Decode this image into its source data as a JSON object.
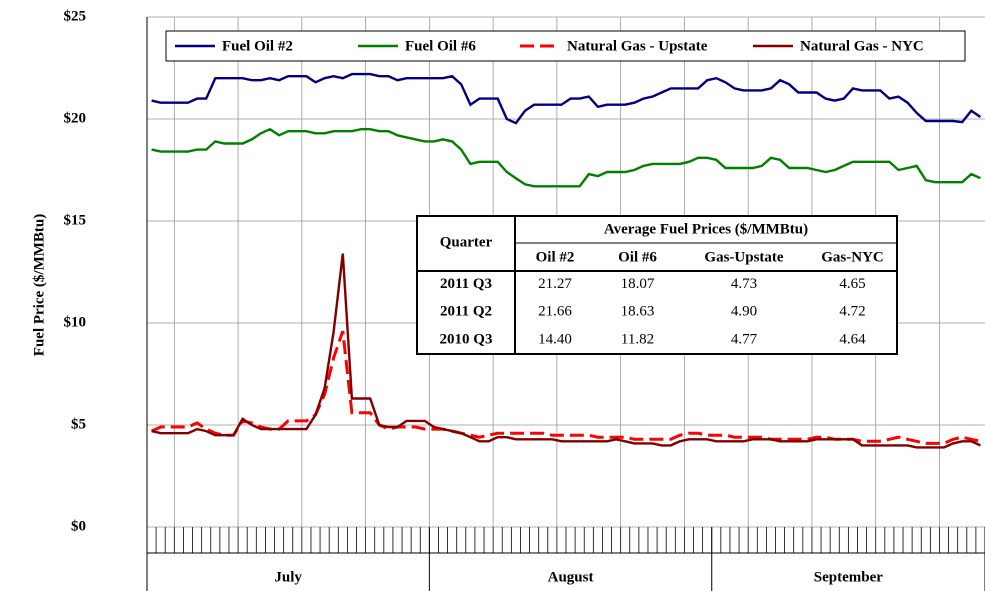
{
  "chart_data": {
    "type": "line",
    "ylabel": "Fuel Price ($/MMBtu)",
    "categories": [
      null,
      null,
      null,
      null,
      null,
      null,
      null,
      null,
      null,
      null,
      null,
      null,
      null,
      null,
      null,
      null,
      null,
      null,
      null,
      null,
      null,
      null,
      null,
      null,
      null,
      null,
      null,
      null,
      null,
      null,
      null,
      null,
      null,
      null,
      null,
      null,
      null,
      null,
      null,
      null,
      null,
      null,
      null,
      null,
      null,
      null,
      null,
      null,
      null,
      null,
      null,
      null,
      null,
      null,
      null,
      null,
      null,
      null,
      null,
      null,
      null,
      null,
      null,
      null,
      null,
      null,
      null,
      null,
      null,
      null,
      null,
      null,
      null,
      null,
      null,
      null,
      null,
      null,
      null,
      null,
      null,
      null,
      null,
      null,
      null,
      null,
      null,
      null,
      null,
      null,
      null,
      null
    ],
    "x_groups": [
      {
        "label": "July",
        "count": 31
      },
      {
        "label": "August",
        "count": 31
      },
      {
        "label": "September",
        "count": 30
      }
    ],
    "ylim": [
      0,
      25
    ],
    "yticks": [
      {
        "value": 0,
        "label": "$0"
      },
      {
        "value": 5,
        "label": "$5"
      },
      {
        "value": 10,
        "label": "$10"
      },
      {
        "value": 15,
        "label": "$15"
      },
      {
        "value": 20,
        "label": "$20"
      },
      {
        "value": 25,
        "label": "$25"
      }
    ],
    "grid": true,
    "legend": "top",
    "series": [
      {
        "name": "Fuel Oil #2",
        "color": "#000080",
        "dash": false,
        "values": [
          20.9,
          20.8,
          20.8,
          20.8,
          20.8,
          21.0,
          21.0,
          22.0,
          22.0,
          22.0,
          22.0,
          21.9,
          21.9,
          22.0,
          21.9,
          22.1,
          22.1,
          22.1,
          21.8,
          22.0,
          22.1,
          22.0,
          22.2,
          22.2,
          22.2,
          22.1,
          22.1,
          21.9,
          22.0,
          22.0,
          22.0,
          22.0,
          22.0,
          22.1,
          21.7,
          20.7,
          21.0,
          21.0,
          21.0,
          20.0,
          19.8,
          20.4,
          20.7,
          20.7,
          20.7,
          20.7,
          21.0,
          21.0,
          21.1,
          20.6,
          20.7,
          20.7,
          20.7,
          20.8,
          21.0,
          21.1,
          21.3,
          21.5,
          21.5,
          21.5,
          21.5,
          21.9,
          22.0,
          21.8,
          21.5,
          21.4,
          21.4,
          21.4,
          21.5,
          21.9,
          21.7,
          21.3,
          21.3,
          21.3,
          21.0,
          20.9,
          21.0,
          21.5,
          21.4,
          21.4,
          21.4,
          21.0,
          21.1,
          20.8,
          20.3,
          19.9,
          19.9,
          19.9,
          19.9,
          19.85,
          20.4,
          20.1
        ]
      },
      {
        "name": "Fuel Oil #6",
        "color": "#008000",
        "dash": false,
        "values": [
          18.5,
          18.4,
          18.4,
          18.4,
          18.4,
          18.5,
          18.5,
          18.9,
          18.8,
          18.8,
          18.8,
          19.0,
          19.3,
          19.5,
          19.2,
          19.4,
          19.4,
          19.4,
          19.3,
          19.3,
          19.4,
          19.4,
          19.4,
          19.5,
          19.5,
          19.4,
          19.4,
          19.2,
          19.1,
          19.0,
          18.9,
          18.9,
          19.0,
          18.9,
          18.5,
          17.8,
          17.9,
          17.9,
          17.9,
          17.4,
          17.1,
          16.8,
          16.7,
          16.7,
          16.7,
          16.7,
          16.7,
          16.7,
          17.3,
          17.2,
          17.4,
          17.4,
          17.4,
          17.5,
          17.7,
          17.8,
          17.8,
          17.8,
          17.8,
          17.9,
          18.1,
          18.1,
          18.0,
          17.6,
          17.6,
          17.6,
          17.6,
          17.7,
          18.1,
          18.0,
          17.6,
          17.6,
          17.6,
          17.5,
          17.4,
          17.5,
          17.7,
          17.9,
          17.9,
          17.9,
          17.9,
          17.9,
          17.5,
          17.6,
          17.7,
          17.0,
          16.9,
          16.9,
          16.9,
          16.9,
          17.3,
          17.1
        ]
      },
      {
        "name": "Natural Gas - Upstate",
        "color": "#ff0000",
        "dash": true,
        "values": [
          4.7,
          4.9,
          4.9,
          4.9,
          4.9,
          5.1,
          4.8,
          4.6,
          4.5,
          4.5,
          5.2,
          5.1,
          4.9,
          4.8,
          4.8,
          5.2,
          5.2,
          5.2,
          5.5,
          6.5,
          8.3,
          9.6,
          5.6,
          5.6,
          5.6,
          5.0,
          4.8,
          4.9,
          4.9,
          4.9,
          4.8,
          4.8,
          4.8,
          4.7,
          4.6,
          4.5,
          4.4,
          4.5,
          4.6,
          4.6,
          4.6,
          4.6,
          4.6,
          4.6,
          4.5,
          4.5,
          4.5,
          4.5,
          4.5,
          4.4,
          4.4,
          4.4,
          4.4,
          4.3,
          4.3,
          4.3,
          4.3,
          4.3,
          4.5,
          4.6,
          4.6,
          4.5,
          4.5,
          4.5,
          4.4,
          4.4,
          4.4,
          4.4,
          4.3,
          4.3,
          4.3,
          4.3,
          4.3,
          4.4,
          4.4,
          4.3,
          4.3,
          4.3,
          4.2,
          4.2,
          4.2,
          4.3,
          4.4,
          4.3,
          4.2,
          4.1,
          4.1,
          4.1,
          4.3,
          4.4,
          4.3,
          4.2
        ]
      },
      {
        "name": "Natural Gas - NYC",
        "color": "#800000",
        "dash": false,
        "values": [
          4.7,
          4.6,
          4.6,
          4.6,
          4.6,
          4.8,
          4.7,
          4.5,
          4.5,
          4.5,
          5.3,
          5.0,
          4.8,
          4.8,
          4.8,
          4.8,
          4.8,
          4.8,
          5.5,
          6.8,
          9.6,
          13.4,
          6.3,
          6.3,
          6.3,
          5.0,
          4.9,
          4.9,
          5.2,
          5.2,
          5.2,
          4.9,
          4.8,
          4.7,
          4.6,
          4.4,
          4.2,
          4.2,
          4.4,
          4.4,
          4.3,
          4.3,
          4.3,
          4.3,
          4.3,
          4.2,
          4.2,
          4.2,
          4.2,
          4.2,
          4.2,
          4.3,
          4.2,
          4.1,
          4.1,
          4.1,
          4.0,
          4.0,
          4.2,
          4.3,
          4.3,
          4.3,
          4.2,
          4.2,
          4.2,
          4.2,
          4.3,
          4.3,
          4.3,
          4.2,
          4.2,
          4.2,
          4.2,
          4.3,
          4.3,
          4.3,
          4.3,
          4.3,
          4.0,
          4.0,
          4.0,
          4.0,
          4.0,
          4.0,
          3.9,
          3.9,
          3.9,
          3.9,
          4.1,
          4.2,
          4.2,
          4.0
        ]
      }
    ]
  },
  "table": {
    "title": "Average Fuel Prices ($/MMBtu)",
    "corner": "Quarter",
    "columns": [
      "Oil #2",
      "Oil #6",
      "Gas-Upstate",
      "Gas-NYC"
    ],
    "rows": [
      {
        "label": "2011 Q3",
        "cells": [
          "21.27",
          "18.07",
          "4.73",
          "4.65"
        ]
      },
      {
        "label": "2011 Q2",
        "cells": [
          "21.66",
          "18.63",
          "4.90",
          "4.72"
        ]
      },
      {
        "label": "2010 Q3",
        "cells": [
          "14.40",
          "11.82",
          "4.77",
          "4.64"
        ]
      }
    ]
  }
}
